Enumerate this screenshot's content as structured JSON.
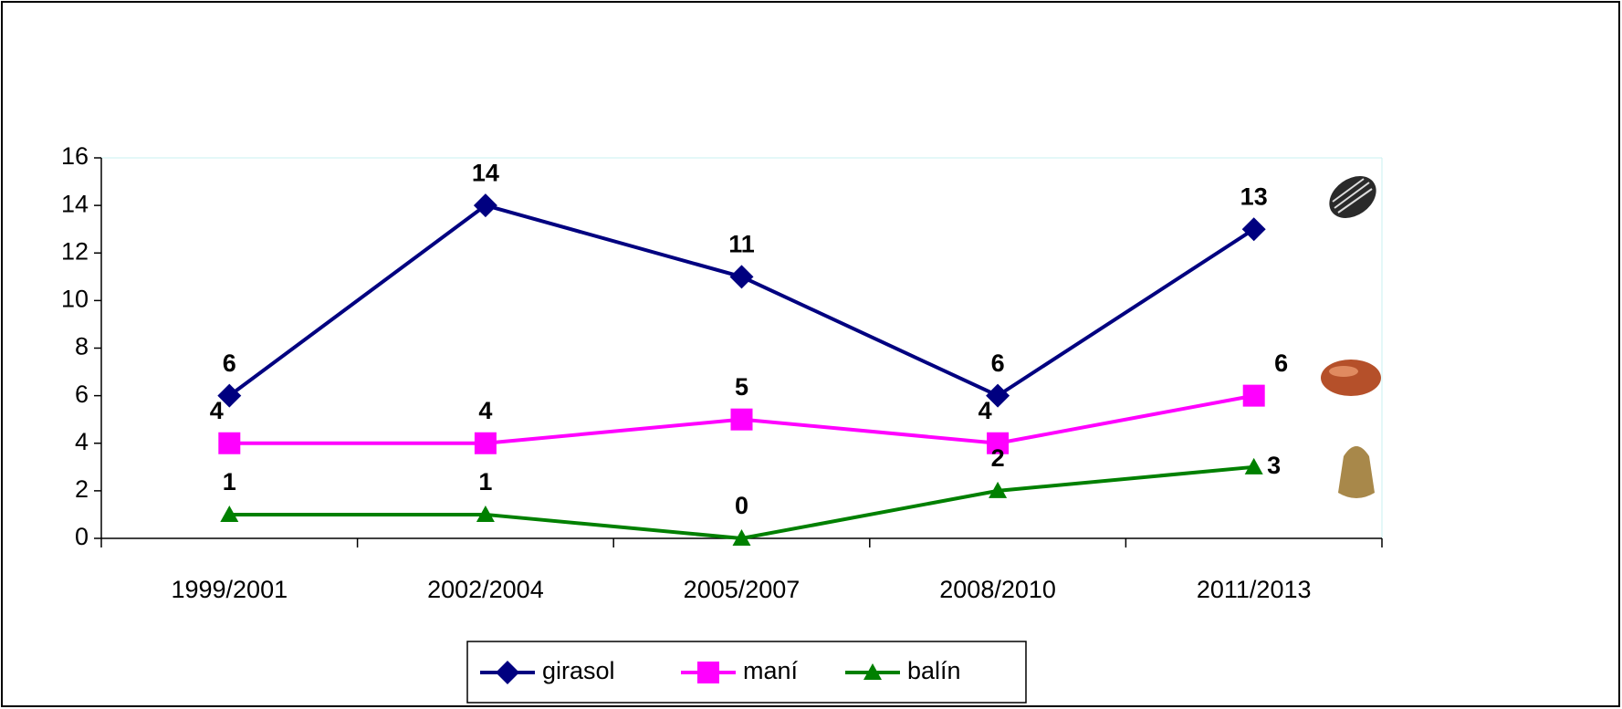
{
  "chart_data": {
    "type": "line",
    "categories": [
      "1999/2001",
      "2002/2004",
      "2005/2007",
      "2008/2010",
      "2011/2013"
    ],
    "series": [
      {
        "name": "girasol",
        "color": "#000080",
        "marker": "diamond",
        "values": [
          6,
          14,
          11,
          6,
          13
        ]
      },
      {
        "name": "maní",
        "color": "#ff00ff",
        "marker": "square",
        "values": [
          4,
          4,
          5,
          4,
          6
        ]
      },
      {
        "name": "balín",
        "color": "#008000",
        "marker": "triangle",
        "values": [
          1,
          1,
          0,
          2,
          3
        ]
      }
    ],
    "ylim": [
      0,
      16
    ],
    "yticks": [
      0,
      2,
      4,
      6,
      8,
      10,
      12,
      14,
      16
    ],
    "grid": false,
    "legend": "bottom"
  }
}
